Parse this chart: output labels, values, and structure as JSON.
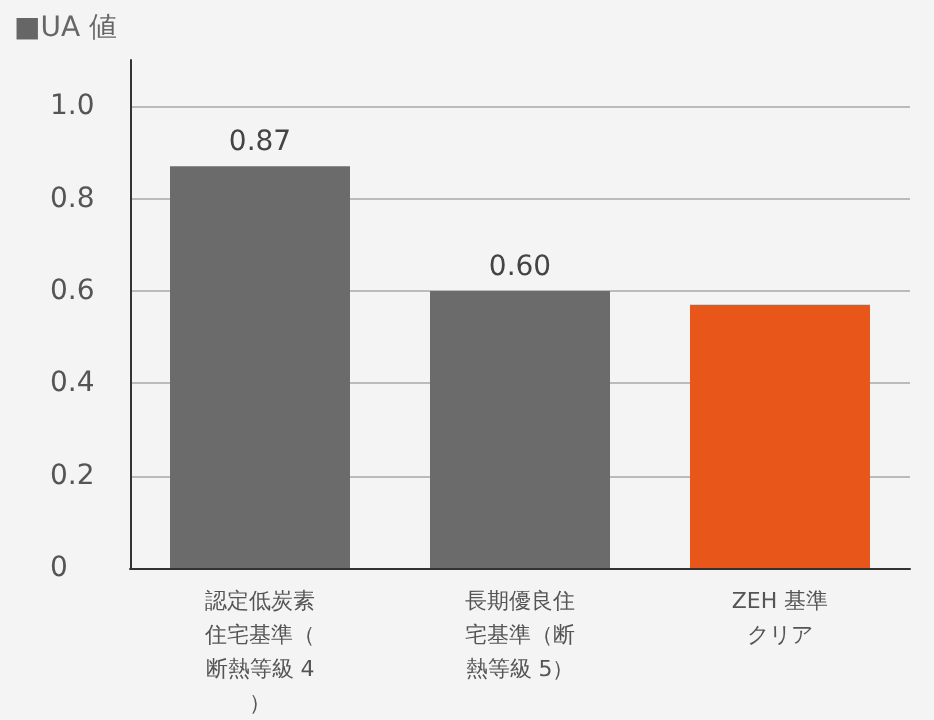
{
  "chart_data": {
    "type": "bar",
    "title": "■UA 値",
    "categories": [
      "認定低炭素住宅基準（断熱等級 4）",
      "長期優良住宅基準（断熱等級 5）",
      "ZEH 基準クリア"
    ],
    "values": [
      0.87,
      0.6,
      0.57
    ],
    "colors": [
      "#6b6b6b",
      "#6b6b6b",
      "#e8561a"
    ],
    "value_labels": [
      "0.87",
      "0.60",
      null
    ],
    "ylim": [
      0,
      1.1
    ],
    "yticks": [
      0,
      0.2,
      0.4,
      0.6,
      0.8,
      {
        "value": 1,
        "label": "1.0"
      }
    ],
    "grid": "y"
  }
}
